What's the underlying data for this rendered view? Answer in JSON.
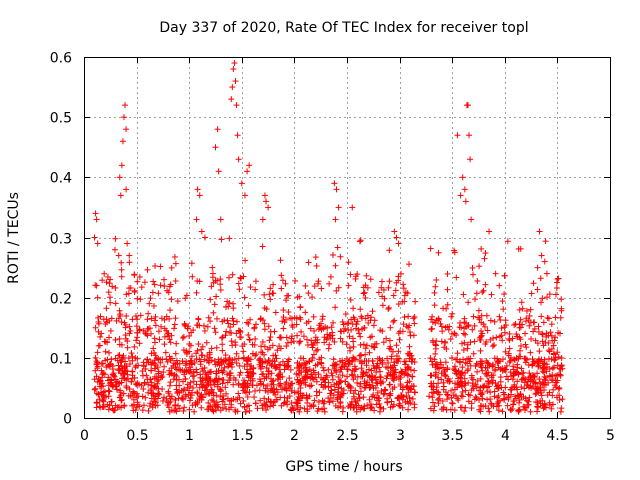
{
  "chart_data": {
    "type": "scatter",
    "title": "Day 337 of 2020, Rate Of TEC Index for receiver topl",
    "xlabel": "GPS time / hours",
    "ylabel": "ROTI / TECUs",
    "xlim": [
      0,
      5
    ],
    "ylim": [
      0,
      0.6
    ],
    "x_ticks": [
      "0",
      "0.5",
      "1",
      "1.5",
      "2",
      "2.5",
      "3",
      "3.5",
      "4",
      "4.5",
      "5"
    ],
    "y_ticks": [
      "0",
      "0.1",
      "0.2",
      "0.3",
      "0.4",
      "0.5",
      "0.6"
    ],
    "grid": true,
    "marker": "+",
    "color": "#ff0000",
    "data_gap": [
      3.15,
      3.28
    ],
    "series": [
      {
        "points": [
          [
            0.1,
            0.3
          ],
          [
            0.11,
            0.34
          ],
          [
            0.12,
            0.33
          ],
          [
            0.13,
            0.29
          ],
          [
            0.12,
            0.22
          ],
          [
            0.13,
            0.2
          ],
          [
            0.11,
            0.15
          ],
          [
            0.14,
            0.12
          ],
          [
            0.12,
            0.09
          ],
          [
            0.13,
            0.06
          ],
          [
            0.14,
            0.04
          ],
          [
            0.11,
            0.1
          ],
          [
            0.34,
            0.4
          ],
          [
            0.35,
            0.37
          ],
          [
            0.36,
            0.42
          ],
          [
            0.37,
            0.46
          ],
          [
            0.38,
            0.5
          ],
          [
            0.39,
            0.52
          ],
          [
            0.4,
            0.48
          ],
          [
            0.4,
            0.38
          ],
          [
            0.41,
            0.29
          ],
          [
            0.43,
            0.27
          ],
          [
            0.33,
            0.27
          ],
          [
            1.08,
            0.38
          ],
          [
            1.1,
            0.37
          ],
          [
            1.07,
            0.33
          ],
          [
            1.12,
            0.31
          ],
          [
            1.15,
            0.3
          ],
          [
            1.25,
            0.45
          ],
          [
            1.27,
            0.48
          ],
          [
            1.28,
            0.41
          ],
          [
            1.3,
            0.33
          ],
          [
            1.22,
            0.25
          ],
          [
            1.4,
            0.53
          ],
          [
            1.41,
            0.55
          ],
          [
            1.42,
            0.58
          ],
          [
            1.43,
            0.59
          ],
          [
            1.44,
            0.56
          ],
          [
            1.45,
            0.52
          ],
          [
            1.46,
            0.47
          ],
          [
            1.47,
            0.43
          ],
          [
            1.5,
            0.39
          ],
          [
            1.53,
            0.37
          ],
          [
            1.55,
            0.41
          ],
          [
            1.57,
            0.42
          ],
          [
            1.72,
            0.37
          ],
          [
            1.73,
            0.36
          ],
          [
            1.75,
            0.35
          ],
          [
            1.7,
            0.33
          ],
          [
            2.38,
            0.39
          ],
          [
            2.4,
            0.38
          ],
          [
            2.42,
            0.35
          ],
          [
            2.39,
            0.33
          ],
          [
            2.55,
            0.35
          ],
          [
            2.95,
            0.31
          ],
          [
            2.97,
            0.3
          ],
          [
            2.99,
            0.29
          ],
          [
            3.55,
            0.47
          ],
          [
            3.58,
            0.37
          ],
          [
            3.6,
            0.4
          ],
          [
            3.62,
            0.38
          ],
          [
            3.63,
            0.36
          ],
          [
            3.64,
            0.52
          ],
          [
            3.65,
            0.52
          ],
          [
            3.66,
            0.47
          ],
          [
            3.67,
            0.43
          ],
          [
            3.68,
            0.33
          ],
          [
            3.85,
            0.31
          ],
          [
            4.33,
            0.31
          ],
          [
            4.35,
            0.27
          ],
          [
            4.38,
            0.26
          ],
          [
            4.4,
            0.24
          ]
        ]
      }
    ]
  }
}
